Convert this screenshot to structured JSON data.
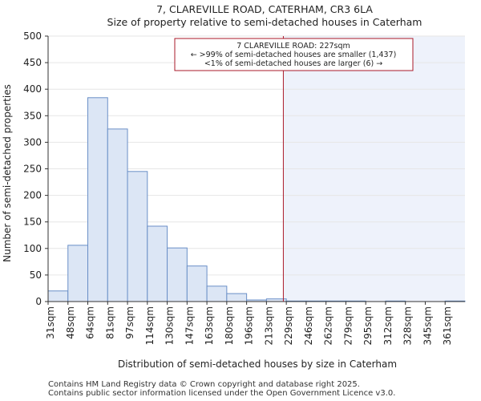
{
  "chart_data": {
    "type": "bar",
    "title": "7, CLAREVILLE ROAD, CATERHAM, CR3 6LA",
    "subtitle": "Size of property relative to semi-detached houses in Caterham",
    "xlabel": "Distribution of semi-detached houses by size in Caterham",
    "ylabel": "Number of semi-detached properties",
    "ylim": [
      0,
      500
    ],
    "yticks": [
      0,
      50,
      100,
      150,
      200,
      250,
      300,
      350,
      400,
      450,
      500
    ],
    "categories": [
      "31sqm",
      "48sqm",
      "64sqm",
      "81sqm",
      "97sqm",
      "114sqm",
      "130sqm",
      "147sqm",
      "163sqm",
      "180sqm",
      "196sqm",
      "213sqm",
      "229sqm",
      "246sqm",
      "262sqm",
      "279sqm",
      "295sqm",
      "312sqm",
      "328sqm",
      "345sqm",
      "361sqm"
    ],
    "values": [
      20,
      106,
      384,
      325,
      245,
      142,
      101,
      67,
      29,
      15,
      3,
      5,
      1,
      1,
      1,
      1,
      0,
      1,
      0,
      0,
      1
    ],
    "marker": {
      "value_index": 11.85,
      "label": "7 CLAREVILLE ROAD: 227sqm",
      "line2": "← >99% of semi-detached houses are smaller (1,437)",
      "line3": "<1% of semi-detached houses are larger (6) →"
    },
    "colors": {
      "bar_fill": "#dce6f5",
      "bar_stroke": "#6a8fc7",
      "marker_line": "#aa1a2a",
      "highlight_fill": "#eef2fb"
    }
  },
  "footer": {
    "line1": "Contains HM Land Registry data © Crown copyright and database right 2025.",
    "line2": "Contains public sector information licensed under the Open Government Licence v3.0."
  }
}
